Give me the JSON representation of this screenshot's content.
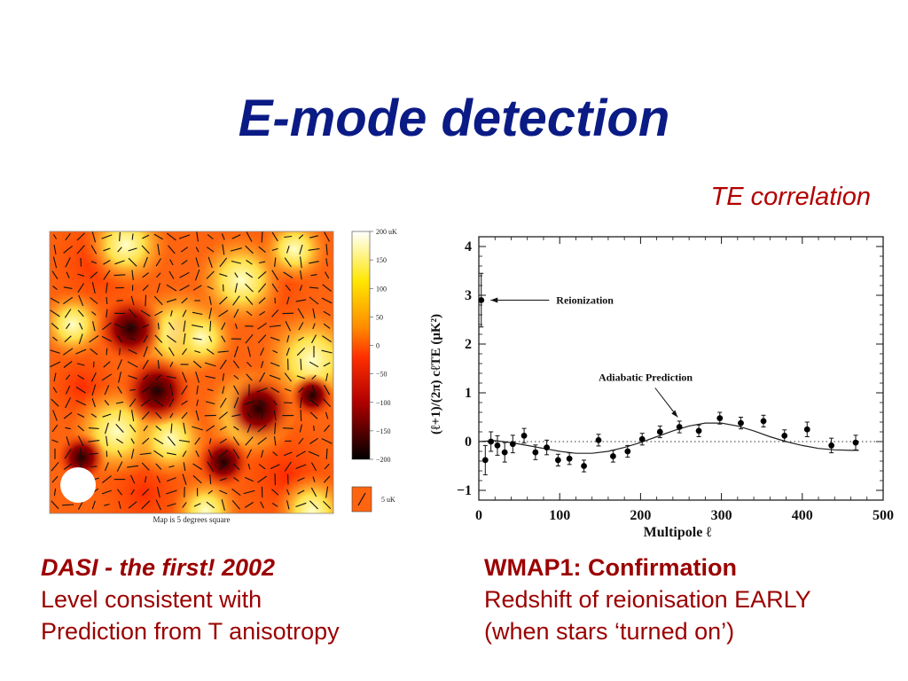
{
  "slide": {
    "title": "E-mode detection",
    "te_label": "TE correlation"
  },
  "dasi_map": {
    "caption": "Map is 5 degrees square",
    "colorbar_ticks": [
      "200 uK",
      "150",
      "100",
      "50",
      "0",
      "−50",
      "−100",
      "−150",
      "−200"
    ],
    "scale_label": "5 uK",
    "colors": {
      "hot": "#ffffd0",
      "warm": "#ff9a1a",
      "mid": "#ff3c00",
      "cold": "#2a0000"
    }
  },
  "wmap_plot": {
    "annotations": {
      "reionization": "Reionization",
      "adiabatic": "Adiabatic Prediction"
    }
  },
  "captions": {
    "left": {
      "heading": "DASI - the first!  2002",
      "line1": "Level consistent with",
      "line2": "Prediction from T anisotropy"
    },
    "right": {
      "heading": "WMAP1:  Confirmation",
      "line1": "Redshift of reionisation EARLY",
      "line2": "(when stars ‘turned on’)"
    }
  },
  "chart_data": {
    "type": "scatter",
    "xlabel": "Multipole ℓ",
    "ylabel": "(ℓ+1)/(2π) cℓTE (μK²)",
    "xlim": [
      0,
      500
    ],
    "ylim": [
      -1.2,
      4.2
    ],
    "x_ticks": [
      "0",
      "100",
      "200",
      "300",
      "400",
      "500"
    ],
    "y_ticks": [
      "−1",
      "0",
      "1",
      "2",
      "3",
      "4"
    ],
    "series": [
      {
        "points": [
          {
            "x": 3,
            "y": 2.9,
            "err": 0.55
          },
          {
            "x": 8,
            "y": -0.38,
            "err": 0.3
          },
          {
            "x": 15,
            "y": 0.0,
            "err": 0.2
          },
          {
            "x": 23,
            "y": -0.08,
            "err": 0.2
          },
          {
            "x": 32,
            "y": -0.22,
            "err": 0.2
          },
          {
            "x": 42,
            "y": -0.05,
            "err": 0.18
          },
          {
            "x": 56,
            "y": 0.12,
            "err": 0.15
          },
          {
            "x": 70,
            "y": -0.22,
            "err": 0.15
          },
          {
            "x": 84,
            "y": -0.12,
            "err": 0.15
          },
          {
            "x": 98,
            "y": -0.38,
            "err": 0.12
          },
          {
            "x": 112,
            "y": -0.35,
            "err": 0.12
          },
          {
            "x": 130,
            "y": -0.5,
            "err": 0.12
          },
          {
            "x": 148,
            "y": 0.03,
            "err": 0.12
          },
          {
            "x": 166,
            "y": -0.3,
            "err": 0.12
          },
          {
            "x": 184,
            "y": -0.2,
            "err": 0.12
          },
          {
            "x": 202,
            "y": 0.05,
            "err": 0.12
          },
          {
            "x": 224,
            "y": 0.2,
            "err": 0.12
          },
          {
            "x": 248,
            "y": 0.3,
            "err": 0.12
          },
          {
            "x": 272,
            "y": 0.22,
            "err": 0.12
          },
          {
            "x": 298,
            "y": 0.48,
            "err": 0.12
          },
          {
            "x": 324,
            "y": 0.38,
            "err": 0.12
          },
          {
            "x": 352,
            "y": 0.42,
            "err": 0.12
          },
          {
            "x": 378,
            "y": 0.12,
            "err": 0.12
          },
          {
            "x": 406,
            "y": 0.25,
            "err": 0.15
          },
          {
            "x": 436,
            "y": -0.08,
            "err": 0.15
          },
          {
            "x": 466,
            "y": -0.02,
            "err": 0.15
          }
        ]
      },
      {
        "kind": "model_curve",
        "x": [
          0,
          20,
          40,
          60,
          80,
          100,
          120,
          140,
          160,
          180,
          200,
          220,
          240,
          260,
          280,
          300,
          320,
          340,
          360,
          380,
          400,
          420,
          440,
          460,
          470
        ],
        "y": [
          0.0,
          0.02,
          -0.02,
          -0.08,
          -0.14,
          -0.2,
          -0.24,
          -0.24,
          -0.2,
          -0.12,
          -0.02,
          0.1,
          0.22,
          0.32,
          0.38,
          0.38,
          0.32,
          0.22,
          0.1,
          0.0,
          -0.08,
          -0.14,
          -0.17,
          -0.18,
          -0.18
        ]
      }
    ],
    "reference_line": {
      "y": 0,
      "style": "dotted"
    },
    "grid": false
  }
}
